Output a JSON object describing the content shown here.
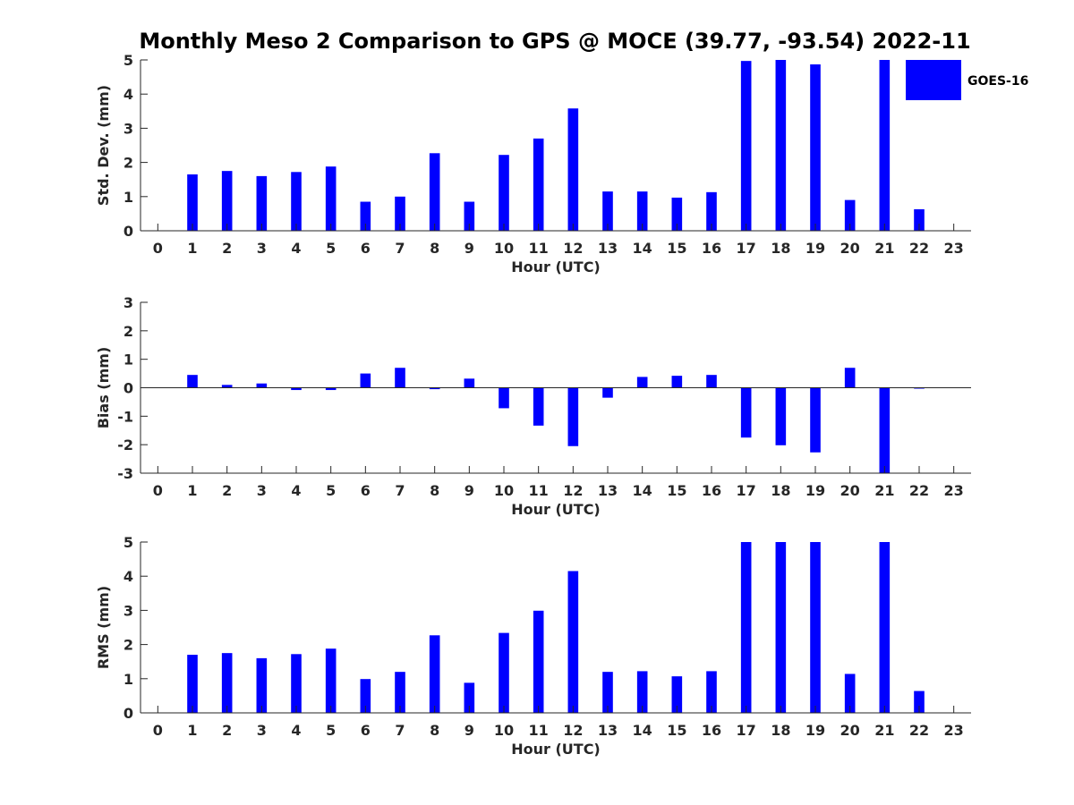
{
  "title": "Monthly Meso 2 Comparison to GPS @ MOCE (39.77, -93.54) 2022-11",
  "legend": {
    "label": "GOES-16",
    "color": "#0000ff",
    "position": "top-right"
  },
  "chart_data": [
    {
      "type": "bar",
      "name": "std-dev",
      "xlabel": "Hour (UTC)",
      "ylabel": "Std. Dev. (mm)",
      "ylim": [
        0,
        5
      ],
      "yticks": [
        0,
        1,
        2,
        3,
        4,
        5
      ],
      "xlim": [
        -0.5,
        23.5
      ],
      "categories": [
        "0",
        "1",
        "2",
        "3",
        "4",
        "5",
        "6",
        "7",
        "8",
        "9",
        "10",
        "11",
        "12",
        "13",
        "14",
        "15",
        "16",
        "17",
        "18",
        "19",
        "20",
        "21",
        "22",
        "23"
      ],
      "series": [
        {
          "name": "GOES-16",
          "color": "#0000ff",
          "values": [
            null,
            1.65,
            1.75,
            1.6,
            1.72,
            1.88,
            0.85,
            1.0,
            2.27,
            0.85,
            2.22,
            2.7,
            3.58,
            1.15,
            1.15,
            0.97,
            1.13,
            4.97,
            5.0,
            4.87,
            0.9,
            5.0,
            0.63,
            null
          ]
        }
      ]
    },
    {
      "type": "bar",
      "name": "bias",
      "xlabel": "Hour (UTC)",
      "ylabel": "Bias (mm)",
      "ylim": [
        -3,
        3
      ],
      "yticks": [
        -3,
        -2,
        -1,
        0,
        1,
        2,
        3
      ],
      "xlim": [
        -0.5,
        23.5
      ],
      "zeroline": true,
      "categories": [
        "0",
        "1",
        "2",
        "3",
        "4",
        "5",
        "6",
        "7",
        "8",
        "9",
        "10",
        "11",
        "12",
        "13",
        "14",
        "15",
        "16",
        "17",
        "18",
        "19",
        "20",
        "21",
        "22",
        "23"
      ],
      "series": [
        {
          "name": "GOES-16",
          "color": "#0000ff",
          "values": [
            null,
            0.45,
            0.1,
            0.15,
            -0.08,
            -0.08,
            0.5,
            0.7,
            -0.05,
            0.32,
            -0.72,
            -1.33,
            -2.05,
            -0.35,
            0.38,
            0.42,
            0.45,
            -1.75,
            -2.02,
            -2.27,
            0.7,
            -3.0,
            -0.02,
            null
          ]
        }
      ]
    },
    {
      "type": "bar",
      "name": "rms",
      "xlabel": "Hour (UTC)",
      "ylabel": "RMS (mm)",
      "ylim": [
        0,
        5
      ],
      "yticks": [
        0,
        1,
        2,
        3,
        4,
        5
      ],
      "xlim": [
        -0.5,
        23.5
      ],
      "categories": [
        "0",
        "1",
        "2",
        "3",
        "4",
        "5",
        "6",
        "7",
        "8",
        "9",
        "10",
        "11",
        "12",
        "13",
        "14",
        "15",
        "16",
        "17",
        "18",
        "19",
        "20",
        "21",
        "22",
        "23"
      ],
      "series": [
        {
          "name": "GOES-16",
          "color": "#0000ff",
          "values": [
            null,
            1.7,
            1.75,
            1.6,
            1.72,
            1.88,
            0.99,
            1.2,
            2.27,
            0.88,
            2.34,
            2.99,
            4.15,
            1.2,
            1.22,
            1.07,
            1.22,
            5.0,
            5.0,
            5.0,
            1.14,
            5.0,
            0.64,
            null
          ]
        }
      ]
    }
  ]
}
